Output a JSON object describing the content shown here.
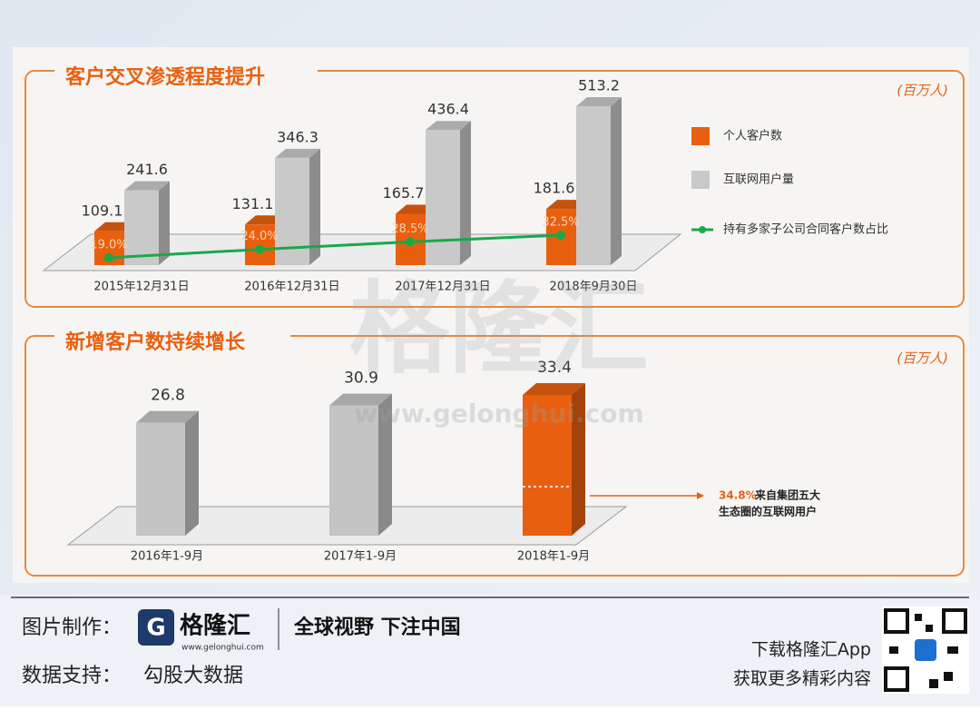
{
  "chart_data": [
    {
      "type": "bar",
      "title": "客户交叉渗透程度提升",
      "unit": "(百万人)",
      "categories": [
        "2015年12月31日",
        "2016年12月31日",
        "2017年12月31日",
        "2018年9月30日"
      ],
      "series": [
        {
          "name": "个人客户数",
          "color": "#e8600f",
          "values": [
            109.1,
            131.1,
            165.7,
            181.6
          ]
        },
        {
          "name": "互联网用户量",
          "color": "#c9c9c9",
          "values": [
            241.6,
            346.3,
            436.4,
            513.2
          ]
        },
        {
          "name": "持有多家子公司合同客户数占比",
          "color": "#1aa84a",
          "type": "line",
          "axis": "y2",
          "values": [
            19.0,
            24.0,
            28.5,
            32.5
          ],
          "value_labels": [
            "19.0%",
            "24.0%",
            "28.5%",
            "32.5%"
          ]
        }
      ]
    },
    {
      "type": "bar",
      "title": "新增客户数持续增长",
      "unit": "(百万人)",
      "categories": [
        "2016年1-9月",
        "2017年1-9月",
        "2018年1-9月"
      ],
      "values": [
        26.8,
        30.9,
        33.4
      ],
      "colors": [
        "#c4c4c4",
        "#c4c4c4",
        "#e8600f"
      ],
      "annotation": {
        "share": 34.8,
        "share_label": "34.8%",
        "text": [
          "来自集团五大",
          "生态圈的互联网用户"
        ]
      }
    }
  ],
  "watermark": {
    "brand": "格隆汇",
    "url": "www.gelonghui.com"
  },
  "footer": {
    "made_by_label": "图片制作：",
    "brand": "格隆汇",
    "brand_url": "www.gelonghui.com",
    "slogan": "全球视野 下注中国",
    "data_label": "数据支持：",
    "data_source": "勾股大数据",
    "app_line1": "下载格隆汇App",
    "app_line2": "获取更多精彩内容"
  }
}
